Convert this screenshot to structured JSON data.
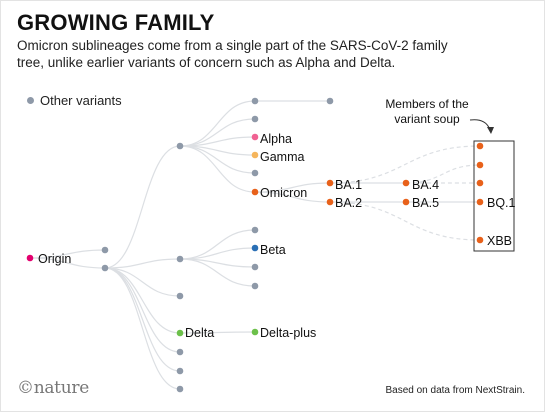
{
  "header": {
    "title": "GROWING FAMILY",
    "subtitle": "Omicron sublineages come from a single part of the SARS-CoV-2 family tree, unlike earlier variants of concern such as Alpha and Delta."
  },
  "legend": {
    "label": "Other variants",
    "color": "#8e99a8"
  },
  "colors": {
    "grey": "#8e99a8",
    "origin": "#e3006e",
    "alpha": "#f06292",
    "gamma": "#f5b55c",
    "omicron": "#e8611a",
    "beta": "#2a6fb5",
    "delta": "#6cc04a",
    "link": "#dcdfe3"
  },
  "nodes": {
    "origin": {
      "label": "Origin"
    },
    "alpha": {
      "label": "Alpha"
    },
    "gamma": {
      "label": "Gamma"
    },
    "omicron": {
      "label": "Omicron"
    },
    "ba1": {
      "label": "BA.1"
    },
    "ba2": {
      "label": "BA.2"
    },
    "ba4": {
      "label": "BA.4"
    },
    "ba5": {
      "label": "BA.5"
    },
    "bq1": {
      "label": "BQ.1"
    },
    "xbb": {
      "label": "XBB"
    },
    "beta": {
      "label": "Beta"
    },
    "delta": {
      "label": "Delta"
    },
    "delta_plus": {
      "label": "Delta-plus"
    }
  },
  "annotation": {
    "line1": "Members of the",
    "line2": "variant soup"
  },
  "footer": {
    "logo": "©nature",
    "source": "Based on data from NextStrain."
  }
}
